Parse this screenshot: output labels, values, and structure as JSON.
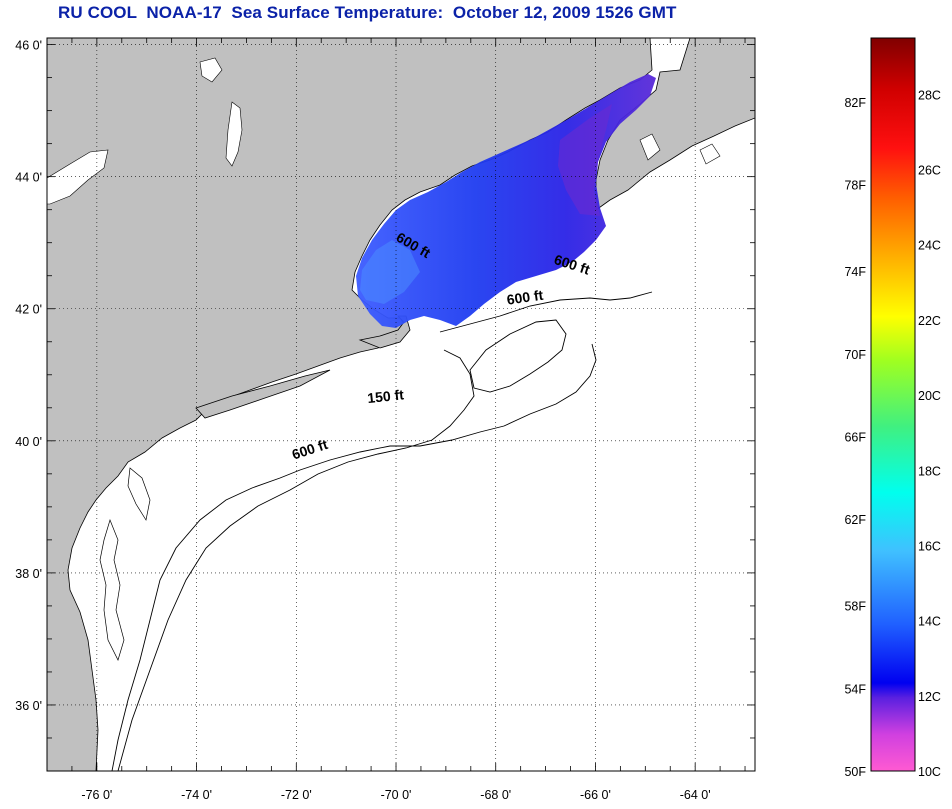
{
  "title": "RU COOL  NOAA-17  Sea Surface Temperature:  October 12, 2009 1526 GMT",
  "map": {
    "lat_ticks": [
      {
        "value": 46,
        "label": "46 0'"
      },
      {
        "value": 44,
        "label": "44 0'"
      },
      {
        "value": 42,
        "label": "42 0'"
      },
      {
        "value": 40,
        "label": "40 0'"
      },
      {
        "value": 38,
        "label": "38 0'"
      },
      {
        "value": 36,
        "label": "36 0'"
      }
    ],
    "lon_ticks": [
      {
        "value": -76,
        "label": "-76 0'"
      },
      {
        "value": -74,
        "label": "-74 0'"
      },
      {
        "value": -72,
        "label": "-72 0'"
      },
      {
        "value": -70,
        "label": "-70 0'"
      },
      {
        "value": -68,
        "label": "-68 0'"
      },
      {
        "value": -66,
        "label": "-66 0'"
      },
      {
        "value": -64,
        "label": "-64 0'"
      }
    ],
    "lat_range": [
      35,
      46.1
    ],
    "lon_range": [
      -77,
      -62.8
    ],
    "grid": "dotted",
    "contour_labels": [
      {
        "text": "600 ft",
        "lon": -69.7,
        "lat": 42.9
      },
      {
        "text": "600 ft",
        "lon": -66.5,
        "lat": 42.6
      },
      {
        "text": "600 ft",
        "lon": -67.4,
        "lat": 42.1
      },
      {
        "text": "150 ft",
        "lon": -70.2,
        "lat": 40.6
      },
      {
        "text": "600 ft",
        "lon": -71.7,
        "lat": 39.8
      }
    ],
    "colors": {
      "land": "#c0c0c0",
      "ocean": "#ffffff",
      "coast": "#000000"
    }
  },
  "colorbar": {
    "range_c": [
      10,
      29.5
    ],
    "f_labels": [
      {
        "label": "82F",
        "c": 27.8
      },
      {
        "label": "78F",
        "c": 25.6
      },
      {
        "label": "74F",
        "c": 23.3
      },
      {
        "label": "70F",
        "c": 21.1
      },
      {
        "label": "66F",
        "c": 18.9
      },
      {
        "label": "62F",
        "c": 16.7
      },
      {
        "label": "58F",
        "c": 14.4
      },
      {
        "label": "54F",
        "c": 12.2
      },
      {
        "label": "50F",
        "c": 10.0
      }
    ],
    "c_labels": [
      {
        "label": "28C",
        "c": 28
      },
      {
        "label": "26C",
        "c": 26
      },
      {
        "label": "24C",
        "c": 24
      },
      {
        "label": "22C",
        "c": 22
      },
      {
        "label": "20C",
        "c": 20
      },
      {
        "label": "18C",
        "c": 18
      },
      {
        "label": "16C",
        "c": 16
      },
      {
        "label": "14C",
        "c": 14
      },
      {
        "label": "12C",
        "c": 12
      },
      {
        "label": "10C",
        "c": 10
      }
    ]
  }
}
